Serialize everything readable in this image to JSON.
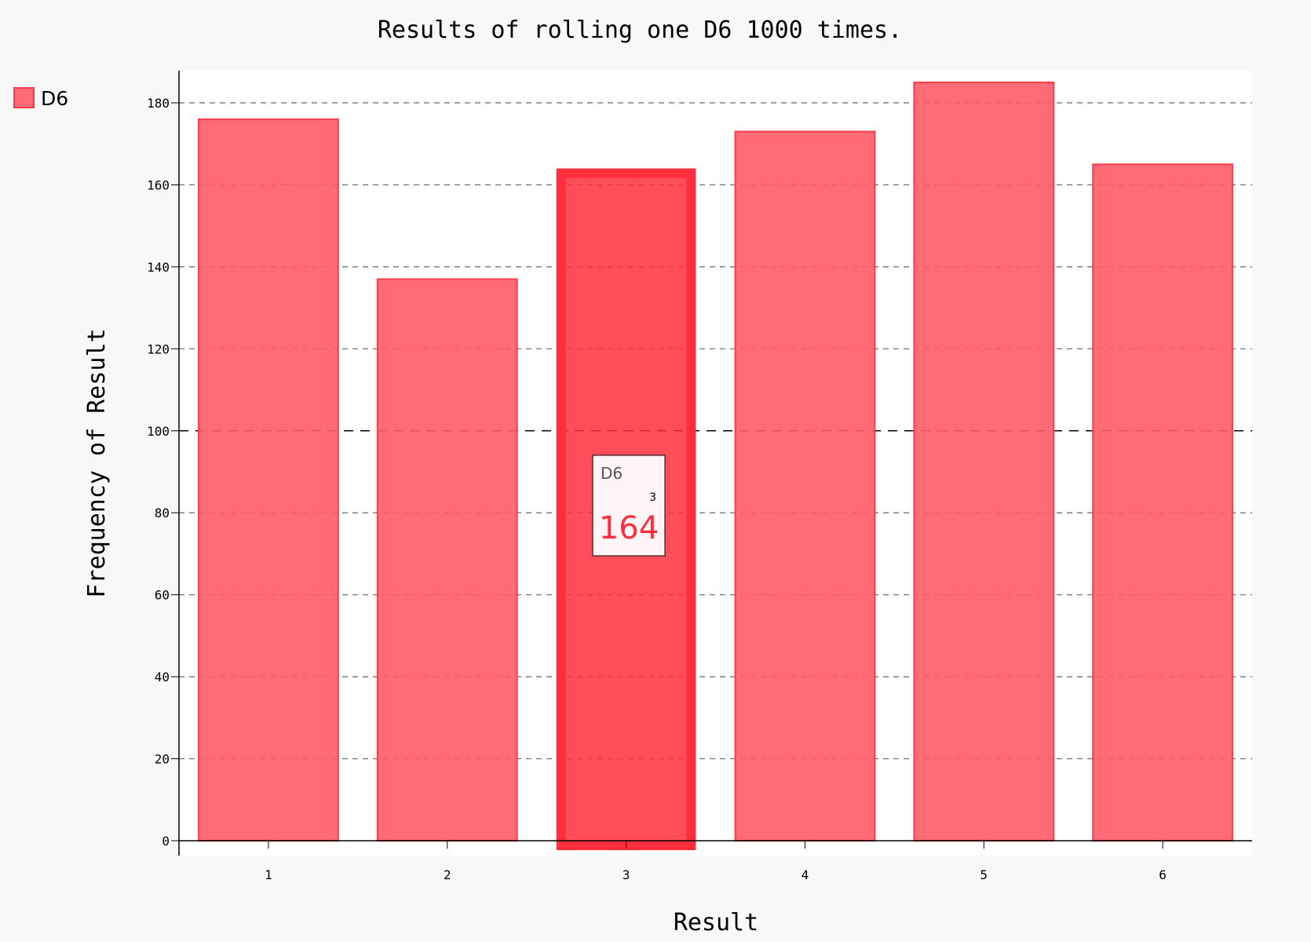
{
  "chart_data": {
    "type": "bar",
    "title": "Results of rolling one D6 1000 times.",
    "xlabel": "Result",
    "ylabel": "Frequency of Result",
    "categories": [
      "1",
      "2",
      "3",
      "4",
      "5",
      "6"
    ],
    "series": [
      {
        "name": "D6",
        "values": [
          176,
          137,
          164,
          173,
          185,
          165
        ]
      }
    ],
    "ylim": [
      0,
      189
    ],
    "yticks": [
      0,
      20,
      40,
      60,
      80,
      100,
      120,
      140,
      160,
      180
    ],
    "grid": true,
    "legend_position": "top-left",
    "bar_color": "#ff5c67",
    "highlight_color": "#ff2e3d",
    "highlighted_category": "3",
    "tooltip": {
      "series": "D6",
      "x": "3",
      "value": "164"
    }
  }
}
